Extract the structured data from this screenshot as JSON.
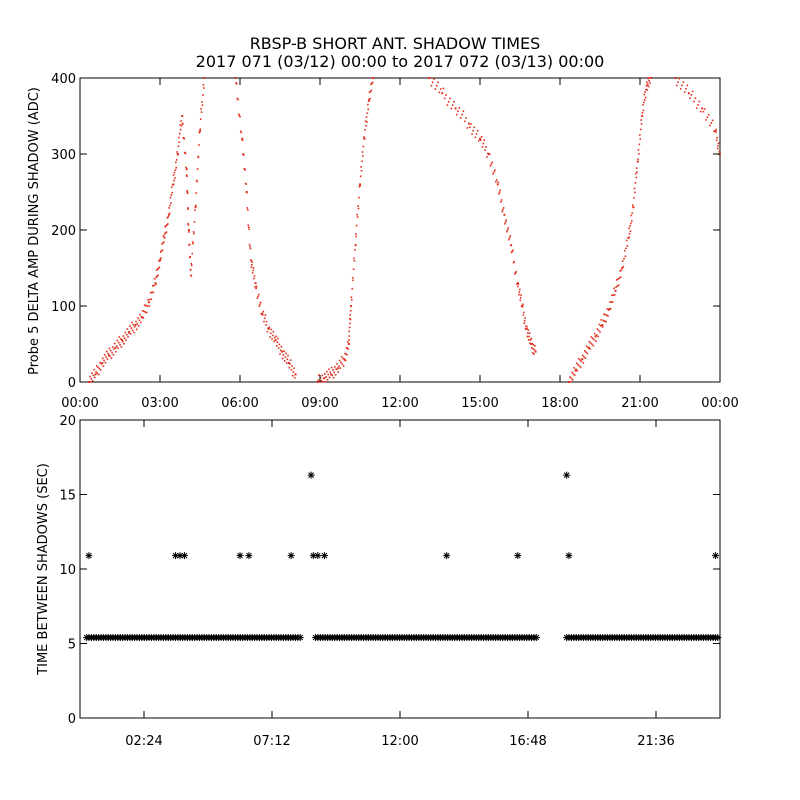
{
  "title": {
    "line1": "RBSP-B SHORT ANT. SHADOW TIMES",
    "line2": "2017 071 (03/12) 00:00 to 2017 072 (03/13) 00:00"
  },
  "colors": {
    "top_points": "#e0301e",
    "bottom_points": "#000000"
  },
  "chart_data": [
    {
      "type": "scatter",
      "ylabel": "Probe 5 DELTA AMP DURING SHADOW (ADC)",
      "xlabel": "",
      "xlim": [
        "00:00",
        "24:00"
      ],
      "ylim": [
        0,
        400
      ],
      "x_tick_labels": [
        "00:00",
        "03:00",
        "06:00",
        "09:00",
        "12:00",
        "15:00",
        "18:00",
        "21:00",
        "00:00"
      ],
      "y_ticks": [
        0,
        100,
        200,
        300,
        400
      ],
      "grid": false,
      "series": [
        {
          "points": [
            [
              "00:20",
              0
            ],
            [
              "00:35",
              10
            ],
            [
              "00:50",
              25
            ],
            [
              "01:05",
              35
            ],
            [
              "01:20",
              45
            ],
            [
              "01:35",
              55
            ],
            [
              "01:50",
              65
            ],
            [
              "02:05",
              75
            ],
            [
              "02:20",
              85
            ],
            [
              "02:35",
              105
            ],
            [
              "02:50",
              130
            ],
            [
              "03:00",
              160
            ],
            [
              "03:10",
              190
            ],
            [
              "03:20",
              220
            ],
            [
              "03:30",
              260
            ],
            [
              "03:40",
              300
            ],
            [
              "03:50",
              350
            ],
            [
              "04:00",
              280
            ],
            [
              "04:05",
              200
            ],
            [
              "04:10",
              140
            ],
            [
              "04:20",
              230
            ],
            [
              "04:30",
              330
            ],
            [
              "04:40",
              400
            ],
            [
              "05:50",
              400
            ],
            [
              "06:05",
              320
            ],
            [
              "06:15",
              250
            ],
            [
              "06:25",
              160
            ],
            [
              "06:35",
              130
            ],
            [
              "06:50",
              90
            ],
            [
              "07:05",
              70
            ],
            [
              "07:20",
              55
            ],
            [
              "07:35",
              40
            ],
            [
              "07:50",
              25
            ],
            [
              "08:05",
              10
            ],
            [
              "08:55",
              0
            ],
            [
              "09:10",
              5
            ],
            [
              "09:25",
              10
            ],
            [
              "09:40",
              18
            ],
            [
              "09:55",
              30
            ],
            [
              "10:05",
              50
            ],
            [
              "10:10",
              100
            ],
            [
              "10:20",
              180
            ],
            [
              "10:30",
              260
            ],
            [
              "10:40",
              320
            ],
            [
              "10:50",
              370
            ],
            [
              "11:00",
              400
            ],
            [
              "13:05",
              400
            ],
            [
              "13:35",
              380
            ],
            [
              "14:05",
              360
            ],
            [
              "14:35",
              340
            ],
            [
              "15:00",
              320
            ],
            [
              "15:20",
              300
            ],
            [
              "15:40",
              260
            ],
            [
              "15:55",
              220
            ],
            [
              "16:10",
              180
            ],
            [
              "16:25",
              130
            ],
            [
              "16:35",
              100
            ],
            [
              "16:45",
              70
            ],
            [
              "16:55",
              50
            ],
            [
              "17:05",
              40
            ],
            [
              "18:20",
              0
            ],
            [
              "18:35",
              15
            ],
            [
              "18:50",
              30
            ],
            [
              "19:05",
              45
            ],
            [
              "19:20",
              60
            ],
            [
              "19:35",
              75
            ],
            [
              "19:50",
              95
            ],
            [
              "20:05",
              120
            ],
            [
              "20:20",
              150
            ],
            [
              "20:35",
              190
            ],
            [
              "20:45",
              230
            ],
            [
              "20:55",
              290
            ],
            [
              "21:05",
              350
            ],
            [
              "21:15",
              390
            ],
            [
              "21:25",
              400
            ],
            [
              "22:20",
              400
            ],
            [
              "22:50",
              380
            ],
            [
              "23:20",
              360
            ],
            [
              "23:50",
              330
            ],
            [
              "24:00",
              300
            ]
          ]
        }
      ]
    },
    {
      "type": "scatter",
      "ylabel": "TIME BETWEEN SHADOWS (SEC)",
      "xlabel": "",
      "xlim": [
        "00:00",
        "24:00"
      ],
      "ylim": [
        0,
        20
      ],
      "x_tick_labels": [
        "02:24",
        "07:12",
        "12:00",
        "16:48",
        "21:36"
      ],
      "y_ticks": [
        0,
        5,
        10,
        15,
        20
      ],
      "grid": false,
      "series": [
        {
          "points": [
            [
              "00:20",
              10.9
            ],
            [
              "03:35",
              10.9
            ],
            [
              "03:45",
              10.9
            ],
            [
              "03:55",
              10.9
            ],
            [
              "06:00",
              10.9
            ],
            [
              "06:20",
              10.9
            ],
            [
              "07:55",
              10.9
            ],
            [
              "08:40",
              16.3
            ],
            [
              "08:45",
              10.9
            ],
            [
              "08:55",
              10.9
            ],
            [
              "09:10",
              10.9
            ],
            [
              "13:45",
              10.9
            ],
            [
              "16:25",
              10.9
            ],
            [
              "18:15",
              16.3
            ],
            [
              "18:20",
              10.9
            ],
            [
              "23:50",
              10.9
            ]
          ],
          "dense_bands": [
            {
              "from": "00:15",
              "to": "08:20",
              "value": 5.4
            },
            {
              "from": "08:50",
              "to": "17:10",
              "value": 5.4
            },
            {
              "from": "18:15",
              "to": "23:59",
              "value": 5.4
            }
          ]
        }
      ]
    }
  ]
}
